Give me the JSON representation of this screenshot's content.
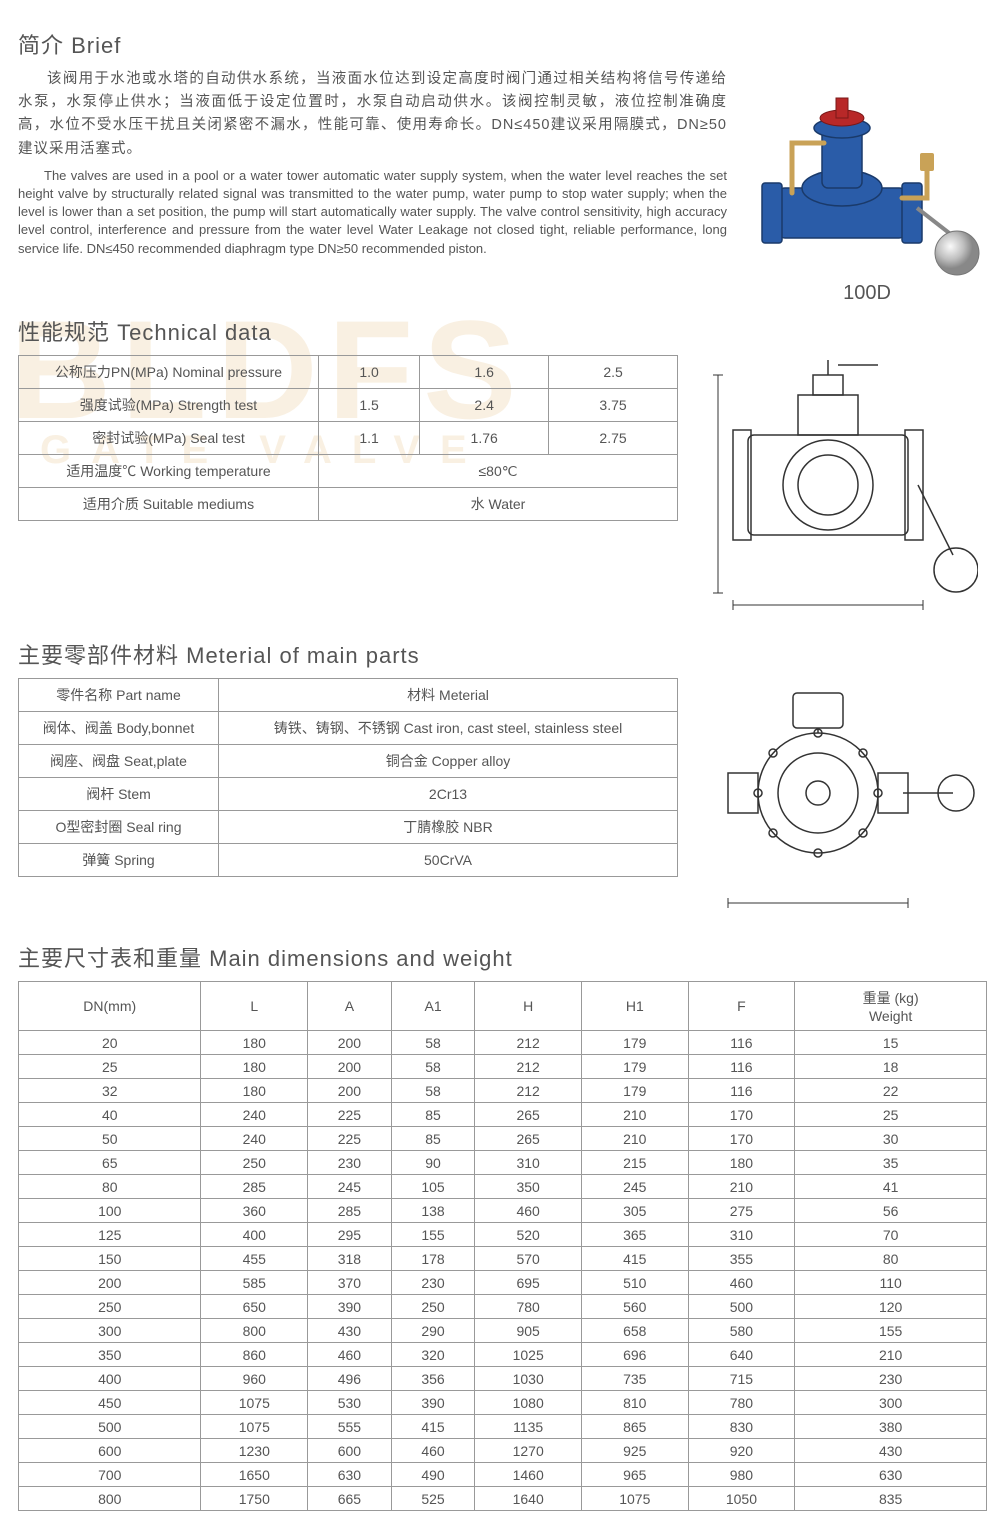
{
  "brief": {
    "title": "简介 Brief",
    "cn": "该阀用于水池或水塔的自动供水系统，当液面水位达到设定高度时阀门通过相关结构将信号传递给水泵，水泵停止供水；当液面低于设定位置时，水泵自动启动供水。该阀控制灵敏，液位控制准确度高，水位不受水压干扰且关闭紧密不漏水，性能可靠、使用寿命长。DN≤450建议采用隔膜式，DN≥50建议采用活塞式。",
    "en": "The valves are used in a pool or a water tower automatic water supply system, when the water level reaches the set height valve by structurally related signal was transmitted to the water pump, water pump to stop water supply; when the level is lower than a set position, the pump will start automatically water supply. The valve control sensitivity, high accuracy level control, interference and pressure from the water level Water Leakage not closed tight, reliable performance, long service life. DN≤450 recommended diaphragm type DN≥50 recommended piston.",
    "model": "100D"
  },
  "tech": {
    "title": "性能规范 Technical data",
    "rows": [
      {
        "label": "公称压力PN(MPa) Nominal pressure",
        "v": [
          "1.0",
          "1.6",
          "2.5"
        ]
      },
      {
        "label": "强度试验(MPa) Strength test",
        "v": [
          "1.5",
          "2.4",
          "3.75"
        ]
      },
      {
        "label": "密封试验(MPa) Seal test",
        "v": [
          "1.1",
          "1.76",
          "2.75"
        ]
      }
    ],
    "temp": {
      "label": "适用温度℃ Working temperature",
      "value": "≤80℃"
    },
    "medium": {
      "label": "适用介质 Suitable mediums",
      "value": "水 Water"
    }
  },
  "materials": {
    "title": "主要零部件材料 Meterial of main parts",
    "header": {
      "part": "零件名称 Part name",
      "mat": "材料 Meterial"
    },
    "rows": [
      {
        "part": "阀体、阀盖 Body,bonnet",
        "mat": "铸铁、铸钢、不锈钢 Cast iron, cast steel, stainless steel"
      },
      {
        "part": "阀座、阀盘 Seat,plate",
        "mat": "铜合金 Copper alloy"
      },
      {
        "part": "阀杆 Stem",
        "mat": "2Cr13"
      },
      {
        "part": "O型密封圈 Seal ring",
        "mat": "丁腈橡胶 NBR"
      },
      {
        "part": "弹簧 Spring",
        "mat": "50CrVA"
      }
    ]
  },
  "dimensions": {
    "title": "主要尺寸表和重量 Main dimensions and weight",
    "columns": [
      "DN(mm)",
      "L",
      "A",
      "A1",
      "H",
      "H1",
      "F",
      "重量 (kg)\nWeight"
    ],
    "rows": [
      [
        "20",
        "180",
        "200",
        "58",
        "212",
        "179",
        "116",
        "15"
      ],
      [
        "25",
        "180",
        "200",
        "58",
        "212",
        "179",
        "116",
        "18"
      ],
      [
        "32",
        "180",
        "200",
        "58",
        "212",
        "179",
        "116",
        "22"
      ],
      [
        "40",
        "240",
        "225",
        "85",
        "265",
        "210",
        "170",
        "25"
      ],
      [
        "50",
        "240",
        "225",
        "85",
        "265",
        "210",
        "170",
        "30"
      ],
      [
        "65",
        "250",
        "230",
        "90",
        "310",
        "215",
        "180",
        "35"
      ],
      [
        "80",
        "285",
        "245",
        "105",
        "350",
        "245",
        "210",
        "41"
      ],
      [
        "100",
        "360",
        "285",
        "138",
        "460",
        "305",
        "275",
        "56"
      ],
      [
        "125",
        "400",
        "295",
        "155",
        "520",
        "365",
        "310",
        "70"
      ],
      [
        "150",
        "455",
        "318",
        "178",
        "570",
        "415",
        "355",
        "80"
      ],
      [
        "200",
        "585",
        "370",
        "230",
        "695",
        "510",
        "460",
        "110"
      ],
      [
        "250",
        "650",
        "390",
        "250",
        "780",
        "560",
        "500",
        "120"
      ],
      [
        "300",
        "800",
        "430",
        "290",
        "905",
        "658",
        "580",
        "155"
      ],
      [
        "350",
        "860",
        "460",
        "320",
        "1025",
        "696",
        "640",
        "210"
      ],
      [
        "400",
        "960",
        "496",
        "356",
        "1030",
        "735",
        "715",
        "230"
      ],
      [
        "450",
        "1075",
        "530",
        "390",
        "1080",
        "810",
        "780",
        "300"
      ],
      [
        "500",
        "1075",
        "555",
        "415",
        "1135",
        "865",
        "830",
        "380"
      ],
      [
        "600",
        "1230",
        "600",
        "460",
        "1270",
        "925",
        "920",
        "430"
      ],
      [
        "700",
        "1650",
        "630",
        "490",
        "1460",
        "965",
        "980",
        "630"
      ],
      [
        "800",
        "1750",
        "665",
        "525",
        "1640",
        "1075",
        "1050",
        "835"
      ]
    ]
  },
  "colors": {
    "valve_body": "#2a5ca8",
    "valve_ball": "#c8c8c8",
    "brass": "#c9a257"
  }
}
